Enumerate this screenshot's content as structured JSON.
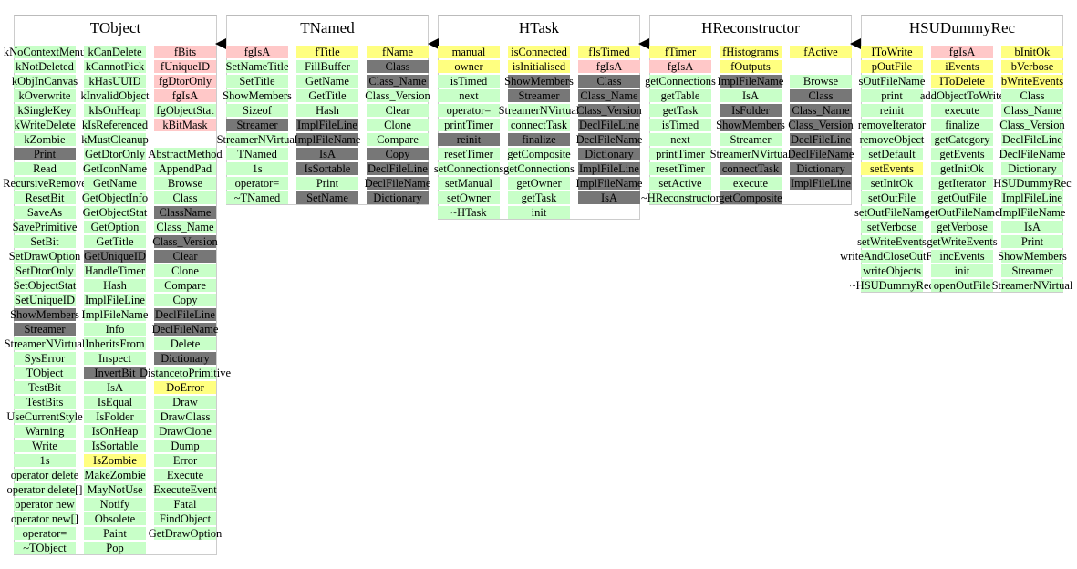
{
  "classes": [
    {
      "title": "TObject",
      "columns": [
        [
          "kNoContextMenu",
          "kNotDeleted",
          "kObjInCanvas",
          "kOverwrite",
          "kSingleKey",
          "kWriteDelete",
          "kZombie",
          "Print",
          "Read",
          "RecursiveRemove",
          "ResetBit",
          "SaveAs",
          "SavePrimitive",
          "SetBit",
          "SetDrawOption",
          "SetDtorOnly",
          "SetObjectStat",
          "SetUniqueID",
          "ShowMembers",
          "Streamer",
          "StreamerNVirtual",
          "SysError",
          "TObject",
          "TestBit",
          "TestBits",
          "UseCurrentStyle",
          "Warning",
          "Write",
          "1s",
          "operator delete",
          "operator delete[]",
          "operator new",
          "operator new[]",
          "operator=",
          "~TObject"
        ],
        [
          "kCanDelete",
          "kCannotPick",
          "kHasUUID",
          "kInvalidObject",
          "kIsOnHeap",
          "kIsReferenced",
          "kMustCleanup",
          "GetDtorOnly",
          "GetIconName",
          "GetName",
          "GetObjectInfo",
          "GetObjectStat",
          "GetOption",
          "GetTitle",
          "GetUniqueID",
          "HandleTimer",
          "Hash",
          "ImplFileLine",
          "ImplFileName",
          "Info",
          "InheritsFrom",
          "Inspect",
          "InvertBit",
          "IsA",
          "IsEqual",
          "IsFolder",
          "IsOnHeap",
          "IsSortable",
          "IsZombie",
          "MakeZombie",
          "MayNotUse",
          "Notify",
          "Obsolete",
          "Paint",
          "Pop"
        ],
        [
          "fBits",
          "fUniqueID",
          "fgDtorOnly",
          "fgIsA",
          "fgObjectStat",
          "kBitMask",
          "",
          "AbstractMethod",
          "AppendPad",
          "Browse",
          "Class",
          "ClassName",
          "Class_Name",
          "Class_Version",
          "Clear",
          "Clone",
          "Compare",
          "Copy",
          "DeclFileLine",
          "DeclFileName",
          "Delete",
          "Dictionary",
          "DistancetoPrimitive",
          "DoError",
          "Draw",
          "DrawClass",
          "DrawClone",
          "Dump",
          "Error",
          "Execute",
          "ExecuteEvent",
          "Fatal",
          "FindObject",
          "GetDrawOption"
        ]
      ]
    },
    {
      "title": "TNamed",
      "columns": [
        [
          "fgIsA",
          "SetNameTitle",
          "SetTitle",
          "ShowMembers",
          "Sizeof",
          "Streamer",
          "StreamerNVirtual",
          "TNamed",
          "1s",
          "operator=",
          "~TNamed"
        ],
        [
          "fTitle",
          "FillBuffer",
          "GetName",
          "GetTitle",
          "Hash",
          "ImplFileLine",
          "ImplFileName",
          "IsA",
          "IsSortable",
          "Print",
          "SetName"
        ],
        [
          "fName",
          "Class",
          "Class_Name",
          "Class_Version",
          "Clear",
          "Clone",
          "Compare",
          "Copy",
          "DeclFileLine",
          "DeclFileName",
          "Dictionary"
        ]
      ]
    },
    {
      "title": "HTask",
      "columns": [
        [
          "manual",
          "owner",
          "isTimed",
          "next",
          "operator=",
          "printTimer",
          "reinit",
          "resetTimer",
          "setConnections",
          "setManual",
          "setOwner",
          "~HTask"
        ],
        [
          "isConnected",
          "isInitialised",
          "ShowMembers",
          "Streamer",
          "StreamerNVirtual",
          "connectTask",
          "finalize",
          "getComposite",
          "getConnections",
          "getOwner",
          "getTask",
          "init"
        ],
        [
          "fIsTimed",
          "fgIsA",
          "Class",
          "Class_Name",
          "Class_Version",
          "DeclFileLine",
          "DeclFileName",
          "Dictionary",
          "ImplFileLine",
          "ImplFileName",
          "IsA"
        ]
      ]
    },
    {
      "title": "HReconstructor",
      "columns": [
        [
          "fTimer",
          "fgIsA",
          "getConnections",
          "getTable",
          "getTask",
          "isTimed",
          "next",
          "printTimer",
          "resetTimer",
          "setActive",
          "~HReconstructor"
        ],
        [
          "fHistograms",
          "fOutputs",
          "ImplFileName",
          "IsA",
          "IsFolder",
          "ShowMembers",
          "Streamer",
          "StreamerNVirtual",
          "connectTask",
          "execute",
          "getComposite"
        ],
        [
          "fActive",
          "",
          "Browse",
          "Class",
          "Class_Name",
          "Class_Version",
          "DeclFileLine",
          "DeclFileName",
          "Dictionary",
          "ImplFileLine"
        ]
      ]
    },
    {
      "title": "HSUDummyRec",
      "columns": [
        [
          "IToWrite",
          "pOutFile",
          "sOutFileName",
          "print",
          "reinit",
          "removeIterator",
          "removeObject",
          "setDefault",
          "setEvents",
          "setInitOk",
          "setOutFile",
          "setOutFileName",
          "setVerbose",
          "setWriteEvents",
          "writeAndCloseOutFile",
          "writeObjects",
          "~HSUDummyRec"
        ],
        [
          "fgIsA",
          "iEvents",
          "IToDelete",
          "addObjectToWrite",
          "execute",
          "finalize",
          "getCategory",
          "getEvents",
          "getInitOk",
          "getIterator",
          "getOutFile",
          "getOutFileName",
          "getVerbose",
          "getWriteEvents",
          "incEvents",
          "init",
          "openOutFile"
        ],
        [
          "bInitOk",
          "bVerbose",
          "bWriteEvents",
          "Class",
          "Class_Name",
          "Class_Version",
          "DeclFileLine",
          "DeclFileName",
          "Dictionary",
          "HSUDummyRec",
          "ImplFileLine",
          "ImplFileName",
          "IsA",
          "Print",
          "ShowMembers",
          "Streamer",
          "StreamerNVirtual"
        ]
      ]
    }
  ],
  "colors": {
    "pink": "#ffc8c8",
    "yellow": "#ffff80",
    "green": "#c8ffc8",
    "dark": "#777777"
  }
}
